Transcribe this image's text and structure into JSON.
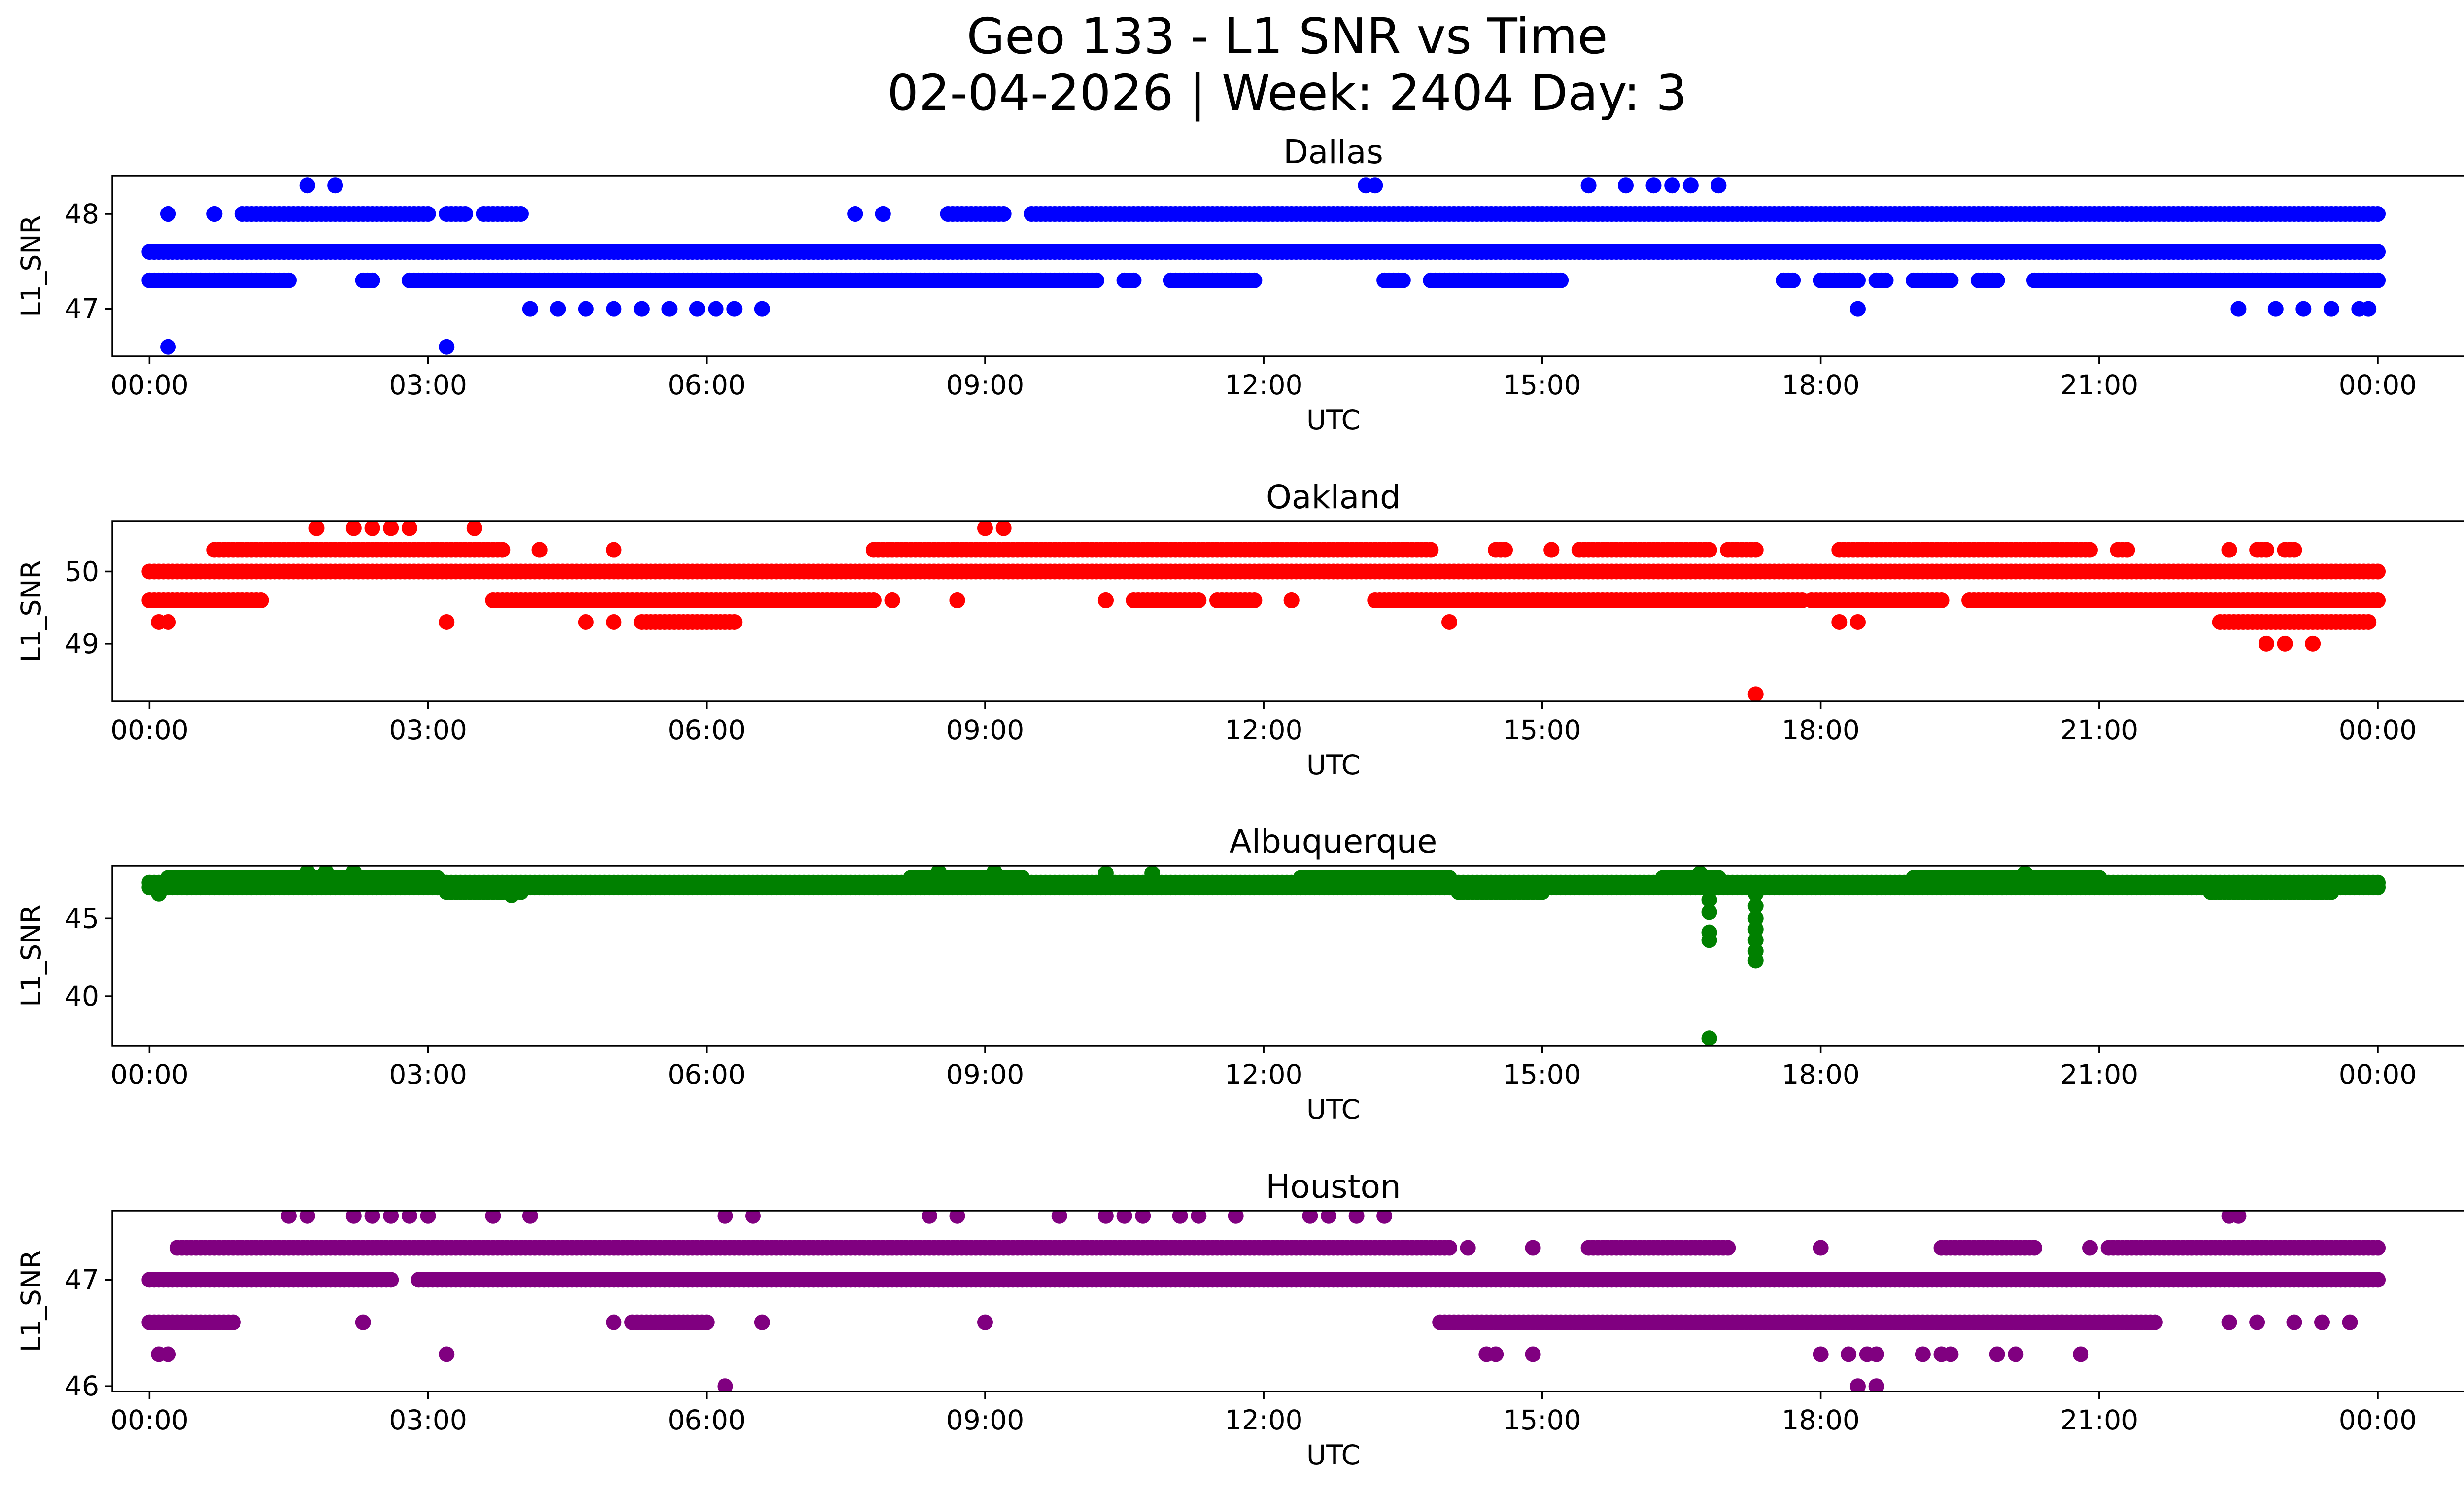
{
  "figure": {
    "title_line1": "Geo 133 - L1 SNR vs Time",
    "title_line2": "02-04-2026 | Week: 2404 Day: 3"
  },
  "chart_data": [
    {
      "type": "scatter",
      "title": "Dallas",
      "xlabel": "UTC",
      "ylabel": "L1_SNR",
      "color": "#0000ff",
      "xlim": [
        -0.4,
        25.9
      ],
      "ylim": [
        46.5,
        48.4
      ],
      "xticks": [
        0,
        3,
        6,
        9,
        12,
        15,
        18,
        21,
        24
      ],
      "xtick_labels": [
        "00:00",
        "03:00",
        "06:00",
        "09:00",
        "12:00",
        "15:00",
        "18:00",
        "21:00",
        "00:00"
      ],
      "yticks": [
        47,
        48
      ],
      "ytick_labels": [
        "47",
        "48"
      ],
      "bands": [
        {
          "y": 47.6,
          "segments": [
            [
              0,
              24
            ]
          ]
        },
        {
          "y": 47.3,
          "segments": [
            [
              0,
              1.5
            ],
            [
              2.3,
              2.4
            ],
            [
              2.8,
              10.2
            ],
            [
              10.5,
              10.6
            ],
            [
              11,
              11.9
            ],
            [
              13.3,
              13.5
            ],
            [
              13.8,
              15.2
            ],
            [
              17.6,
              17.7
            ],
            [
              18,
              18.4
            ],
            [
              18.6,
              18.7
            ],
            [
              19,
              19.4
            ],
            [
              19.7,
              19.9
            ],
            [
              20.3,
              24
            ]
          ]
        },
        {
          "y": 48.0,
          "segments": [
            [
              0.2,
              0.2
            ],
            [
              0.7,
              0.7
            ],
            [
              1,
              3
            ],
            [
              3.2,
              3.4
            ],
            [
              3.6,
              4
            ],
            [
              7.6,
              7.6
            ],
            [
              7.9,
              7.9
            ],
            [
              8.6,
              9.2
            ],
            [
              9.5,
              24.0
            ]
          ]
        }
      ],
      "points": [
        [
          0.2,
          46.6
        ],
        [
          3.2,
          46.6
        ],
        [
          1.7,
          48.3
        ],
        [
          2.0,
          48.3
        ],
        [
          13.1,
          48.3
        ],
        [
          13.2,
          48.3
        ],
        [
          15.5,
          48.3
        ],
        [
          15.9,
          48.3
        ],
        [
          16.2,
          48.3
        ],
        [
          16.4,
          48.3
        ],
        [
          16.6,
          48.3
        ],
        [
          16.9,
          48.3
        ],
        [
          4.1,
          47.0
        ],
        [
          4.4,
          47.0
        ],
        [
          4.7,
          47.0
        ],
        [
          5.0,
          47.0
        ],
        [
          5.3,
          47.0
        ],
        [
          5.6,
          47.0
        ],
        [
          5.9,
          47.0
        ],
        [
          6.1,
          47.0
        ],
        [
          6.3,
          47.0
        ],
        [
          6.6,
          47.0
        ],
        [
          18.4,
          47.0
        ],
        [
          22.5,
          47.0
        ],
        [
          22.9,
          47.0
        ],
        [
          23.2,
          47.0
        ],
        [
          23.5,
          47.0
        ],
        [
          23.8,
          47.0
        ],
        [
          23.9,
          47.0
        ]
      ]
    },
    {
      "type": "scatter",
      "title": "Oakland",
      "xlabel": "UTC",
      "ylabel": "L1_SNR",
      "color": "#ff0000",
      "xlim": [
        -0.4,
        25.9
      ],
      "ylim": [
        48.2,
        50.7
      ],
      "xticks": [
        0,
        3,
        6,
        9,
        12,
        15,
        18,
        21,
        24
      ],
      "xtick_labels": [
        "00:00",
        "03:00",
        "06:00",
        "09:00",
        "12:00",
        "15:00",
        "18:00",
        "21:00",
        "00:00"
      ],
      "yticks": [
        49,
        50
      ],
      "ytick_labels": [
        "49",
        "50"
      ],
      "bands": [
        {
          "y": 50.0,
          "segments": [
            [
              0,
              24
            ]
          ]
        },
        {
          "y": 49.6,
          "segments": [
            [
              0,
              1.2
            ],
            [
              3.7,
              7.8
            ],
            [
              8.0,
              8.0
            ],
            [
              8.7,
              8.7
            ],
            [
              10.3,
              10.3
            ],
            [
              10.6,
              11.3
            ],
            [
              11.5,
              11.9
            ],
            [
              12.3,
              12.3
            ],
            [
              13.2,
              17.8
            ],
            [
              17.9,
              19.3
            ],
            [
              19.6,
              24
            ]
          ]
        },
        {
          "y": 50.3,
          "segments": [
            [
              0.7,
              3.8
            ],
            [
              4.2,
              4.2
            ],
            [
              5.0,
              5.0
            ],
            [
              7.8,
              13.8
            ],
            [
              14.5,
              14.6
            ],
            [
              15.1,
              15.1
            ],
            [
              15.4,
              16.8
            ],
            [
              17.0,
              17.3
            ],
            [
              18.2,
              20.9
            ],
            [
              21.2,
              21.3
            ],
            [
              22.4,
              22.4
            ],
            [
              22.7,
              22.8
            ],
            [
              23.0,
              23.1
            ]
          ]
        },
        {
          "y": 49.3,
          "segments": [
            [
              5.3,
              6.3
            ],
            [
              22.3,
              23.9
            ]
          ]
        }
      ],
      "points": [
        [
          0.1,
          49.3
        ],
        [
          0.2,
          49.3
        ],
        [
          3.2,
          49.3
        ],
        [
          4.7,
          49.3
        ],
        [
          5.0,
          49.3
        ],
        [
          14.0,
          49.3
        ],
        [
          18.2,
          49.3
        ],
        [
          18.4,
          49.3
        ],
        [
          1.8,
          50.6
        ],
        [
          2.2,
          50.6
        ],
        [
          2.4,
          50.6
        ],
        [
          2.6,
          50.6
        ],
        [
          2.8,
          50.6
        ],
        [
          3.5,
          50.6
        ],
        [
          9.0,
          50.6
        ],
        [
          9.2,
          50.6
        ],
        [
          22.8,
          49.0
        ],
        [
          23.0,
          49.0
        ],
        [
          23.3,
          49.0
        ],
        [
          17.3,
          48.3
        ]
      ]
    },
    {
      "type": "scatter",
      "title": "Albuquerque",
      "xlabel": "UTC",
      "ylabel": "L1_SNR",
      "color": "#008000",
      "xlim": [
        -0.4,
        25.9
      ],
      "ylim": [
        36.8,
        48.4
      ],
      "xticks": [
        0,
        3,
        6,
        9,
        12,
        15,
        18,
        21,
        24
      ],
      "xtick_labels": [
        "00:00",
        "03:00",
        "06:00",
        "09:00",
        "12:00",
        "15:00",
        "18:00",
        "21:00",
        "00:00"
      ],
      "yticks": [
        40,
        45
      ],
      "ytick_labels": [
        "40",
        "45"
      ],
      "bands": [
        {
          "y": 47.0,
          "segments": [
            [
              0,
              24
            ]
          ]
        },
        {
          "y": 47.3,
          "segments": [
            [
              0,
              24
            ]
          ]
        },
        {
          "y": 47.6,
          "segments": [
            [
              0.2,
              3.1
            ],
            [
              8.2,
              9.4
            ],
            [
              12.4,
              14.0
            ],
            [
              16.3,
              16.9
            ],
            [
              19.0,
              21.0
            ]
          ]
        },
        {
          "y": 46.7,
          "segments": [
            [
              3.2,
              4.0
            ],
            [
              14.1,
              15.0
            ],
            [
              22.2,
              23.5
            ]
          ]
        }
      ],
      "points": [
        [
          0.1,
          46.6
        ],
        [
          1.7,
          48.0
        ],
        [
          1.9,
          48.0
        ],
        [
          2.2,
          48.0
        ],
        [
          8.5,
          48.0
        ],
        [
          9.1,
          48.0
        ],
        [
          10.3,
          47.9
        ],
        [
          10.8,
          47.9
        ],
        [
          16.7,
          47.9
        ],
        [
          20.2,
          47.9
        ],
        [
          3.9,
          46.5
        ],
        [
          16.8,
          46.2
        ],
        [
          16.8,
          45.4
        ],
        [
          16.8,
          44.1
        ],
        [
          16.8,
          43.6
        ],
        [
          17.3,
          46.6
        ],
        [
          17.3,
          45.8
        ],
        [
          17.3,
          45.0
        ],
        [
          17.3,
          44.3
        ],
        [
          17.3,
          43.6
        ],
        [
          17.3,
          42.9
        ],
        [
          17.3,
          42.3
        ],
        [
          16.8,
          37.3
        ]
      ]
    },
    {
      "type": "scatter",
      "title": "Houston",
      "xlabel": "UTC",
      "ylabel": "L1_SNR",
      "color": "#800080",
      "xlim": [
        -0.4,
        25.9
      ],
      "ylim": [
        45.95,
        47.65
      ],
      "xticks": [
        0,
        3,
        6,
        9,
        12,
        15,
        18,
        21,
        24
      ],
      "xtick_labels": [
        "00:00",
        "03:00",
        "06:00",
        "09:00",
        "12:00",
        "15:00",
        "18:00",
        "21:00",
        "00:00"
      ],
      "yticks": [
        46,
        47
      ],
      "ytick_labels": [
        "46",
        "47"
      ],
      "bands": [
        {
          "y": 47.0,
          "segments": [
            [
              0,
              2.6
            ],
            [
              2.9,
              24
            ]
          ]
        },
        {
          "y": 47.3,
          "segments": [
            [
              0.3,
              14.0
            ],
            [
              15.5,
              17.0
            ],
            [
              19.3,
              20.3
            ],
            [
              21.1,
              24
            ]
          ]
        },
        {
          "y": 46.6,
          "segments": [
            [
              0,
              0.9
            ],
            [
              5.2,
              6.0
            ],
            [
              13.9,
              21.6
            ]
          ]
        }
      ],
      "points": [
        [
          0.1,
          46.3
        ],
        [
          0.2,
          46.3
        ],
        [
          3.2,
          46.3
        ],
        [
          14.4,
          46.3
        ],
        [
          14.5,
          46.3
        ],
        [
          14.9,
          46.3
        ],
        [
          18.0,
          46.3
        ],
        [
          18.3,
          46.3
        ],
        [
          18.5,
          46.3
        ],
        [
          18.6,
          46.3
        ],
        [
          19.1,
          46.3
        ],
        [
          19.3,
          46.3
        ],
        [
          19.4,
          46.3
        ],
        [
          19.9,
          46.3
        ],
        [
          20.1,
          46.3
        ],
        [
          20.8,
          46.3
        ],
        [
          6.2,
          46.0
        ],
        [
          18.4,
          46.0
        ],
        [
          18.6,
          46.0
        ],
        [
          1.5,
          47.6
        ],
        [
          1.7,
          47.6
        ],
        [
          2.2,
          47.6
        ],
        [
          2.4,
          47.6
        ],
        [
          2.6,
          47.6
        ],
        [
          2.8,
          47.6
        ],
        [
          3.0,
          47.6
        ],
        [
          3.7,
          47.6
        ],
        [
          4.1,
          47.6
        ],
        [
          6.2,
          47.6
        ],
        [
          6.5,
          47.6
        ],
        [
          8.4,
          47.6
        ],
        [
          8.7,
          47.6
        ],
        [
          9.8,
          47.6
        ],
        [
          10.3,
          47.6
        ],
        [
          10.5,
          47.6
        ],
        [
          10.7,
          47.6
        ],
        [
          11.1,
          47.6
        ],
        [
          11.3,
          47.6
        ],
        [
          11.7,
          47.6
        ],
        [
          12.5,
          47.6
        ],
        [
          12.7,
          47.6
        ],
        [
          13.0,
          47.6
        ],
        [
          13.3,
          47.6
        ],
        [
          22.4,
          47.6
        ],
        [
          22.5,
          47.6
        ],
        [
          14.2,
          47.3
        ],
        [
          14.9,
          47.3
        ],
        [
          5.0,
          46.6
        ],
        [
          6.6,
          46.6
        ],
        [
          9.0,
          46.6
        ],
        [
          2.3,
          46.6
        ],
        [
          22.4,
          46.6
        ],
        [
          22.7,
          46.6
        ],
        [
          23.1,
          46.6
        ],
        [
          23.4,
          46.6
        ],
        [
          23.7,
          46.6
        ],
        [
          18.0,
          47.3
        ],
        [
          20.9,
          47.3
        ]
      ]
    }
  ]
}
